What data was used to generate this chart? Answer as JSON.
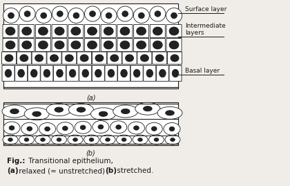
{
  "bg_color": "#f0ede8",
  "line_color": "#1a1a1a",
  "label_surface": "Surface layer",
  "label_intermediate": "Intermediate\nlayers",
  "label_basal": "Basal layer",
  "label_a": "(a)",
  "label_b": "(b)",
  "caption_bold": "Fig.:",
  "caption_normal": " Transitional epithelium,",
  "caption_line2_b1": "(a)",
  "caption_line2_n": " relaxed (= unstretched) ",
  "caption_line2_b2": "(b)",
  "caption_line2_n2": " stretched."
}
